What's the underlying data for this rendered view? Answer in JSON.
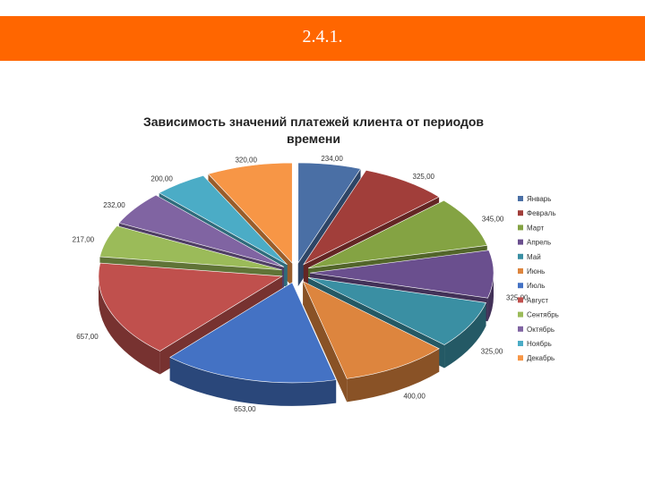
{
  "slide": {
    "title": "2.4.1."
  },
  "chart_data": {
    "type": "pie",
    "title": "Зависимость значений платежей клиента от периодов времени",
    "exploded": true,
    "three_d": true,
    "legend_position": "right",
    "categories": [
      "Январь",
      "Февраль",
      "Март",
      "Апрель",
      "Май",
      "Июнь",
      "Июль",
      "Август",
      "Сентябрь",
      "Октябрь",
      "Ноябрь",
      "Декабрь"
    ],
    "values": [
      234,
      325,
      345,
      325,
      325,
      400,
      653,
      657,
      217,
      232,
      200,
      320
    ],
    "value_labels": [
      "234,00",
      "325,00",
      "345,00",
      "325,00",
      "325,00",
      "400,00",
      "653,00",
      "657,00",
      "217,00",
      "232,00",
      "200,00",
      "320,00"
    ],
    "colors": [
      "#4a6fa5",
      "#a13e3a",
      "#84a343",
      "#6a4f8e",
      "#3a8fa3",
      "#dd853e",
      "#4472c4",
      "#c0504d",
      "#9bbb59",
      "#8064a2",
      "#4bacc6",
      "#f79646"
    ]
  }
}
